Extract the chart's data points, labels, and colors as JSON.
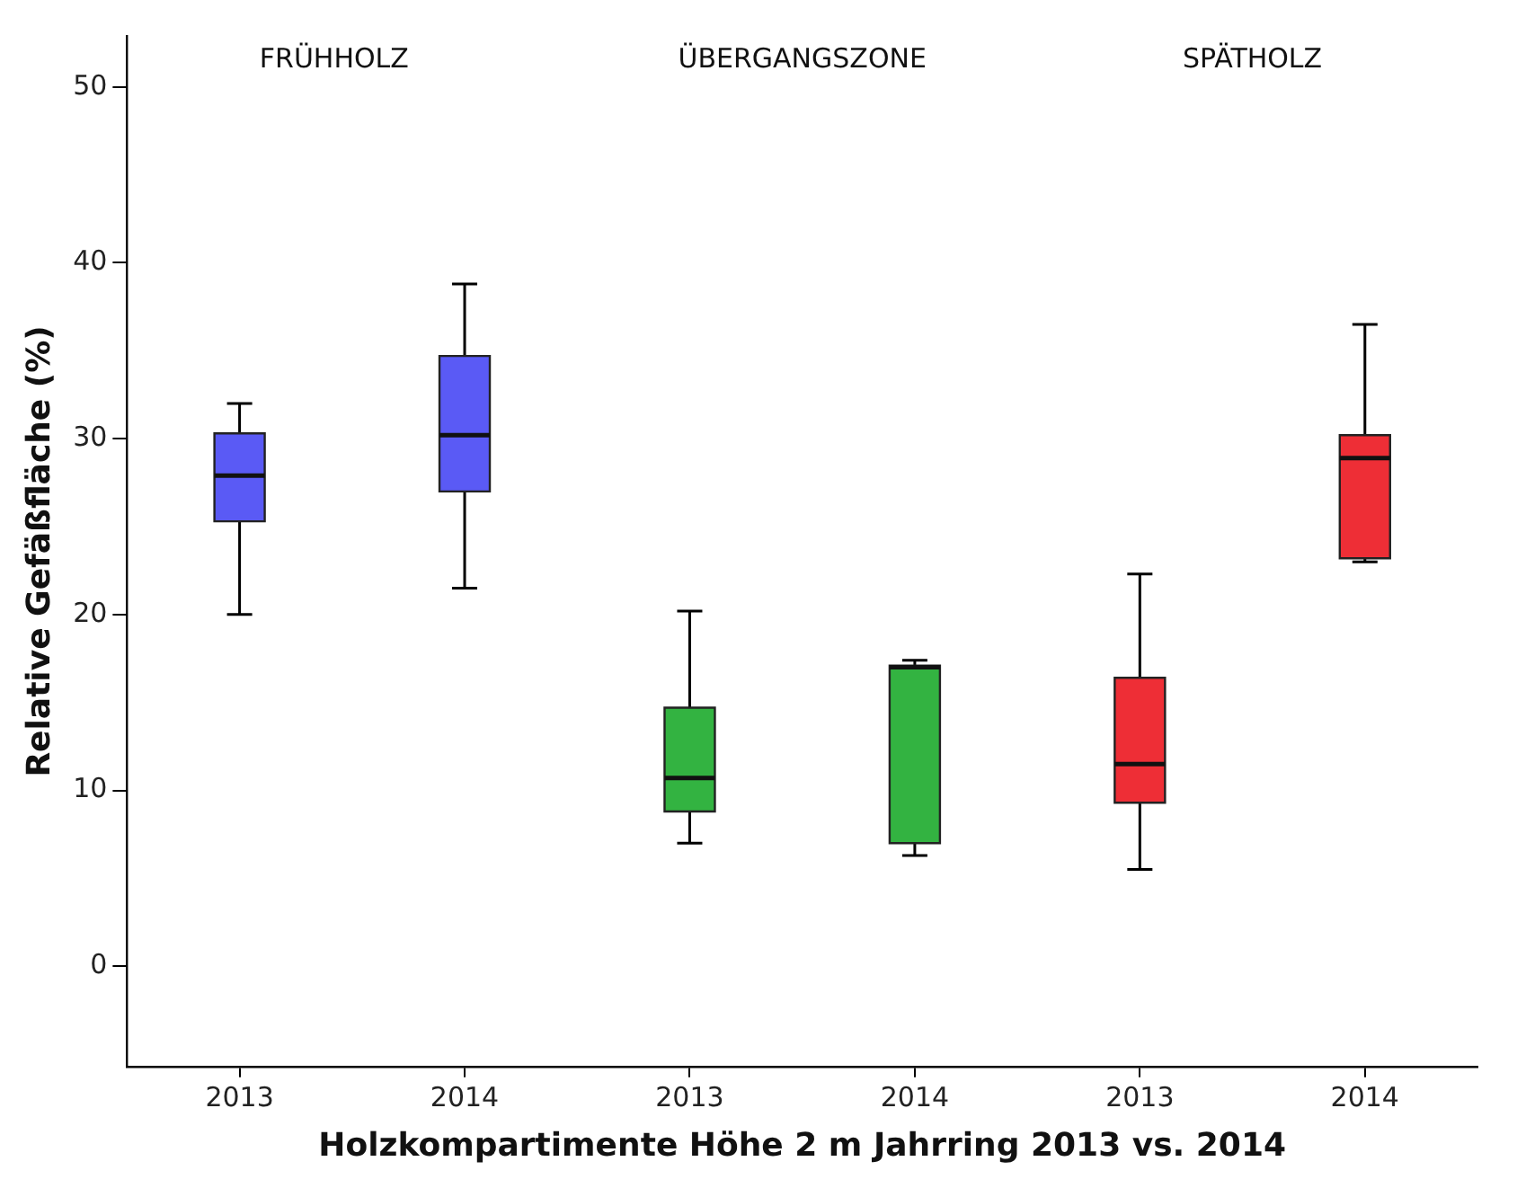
{
  "chart_data": {
    "type": "box",
    "xlabel": "Holzkompartimente Höhe 2 m Jahrring 2013 vs. 2014",
    "ylabel": "Relative Gefäßfläche (%)",
    "categories": [
      "2013",
      "2014",
      "2013",
      "2014",
      "2013",
      "2014"
    ],
    "colors": [
      "#5a5af5",
      "#5a5af5",
      "#33b341",
      "#33b341",
      "#ee2e36",
      "#ee2e36"
    ],
    "boxes": [
      {
        "low": 20.0,
        "q1": 25.3,
        "median": 27.9,
        "q3": 30.3,
        "high": 32.0
      },
      {
        "low": 21.5,
        "q1": 27.0,
        "median": 30.2,
        "q3": 34.7,
        "high": 38.8
      },
      {
        "low": 7.0,
        "q1": 8.8,
        "median": 10.7,
        "q3": 14.7,
        "high": 20.2
      },
      {
        "low": 6.3,
        "q1": 7.0,
        "median": 17.0,
        "q3": 17.1,
        "high": 17.4
      },
      {
        "low": 5.5,
        "q1": 9.3,
        "median": 11.5,
        "q3": 16.4,
        "high": 22.3
      },
      {
        "low": 23.0,
        "q1": 23.2,
        "median": 28.9,
        "q3": 30.2,
        "high": 36.5
      }
    ],
    "annotations": [
      "FRÜHHOLZ",
      "ÜBERGANGSZONE",
      "SPÄTHOLZ"
    ],
    "ylim": [
      -5.7,
      52.9
    ],
    "yticks": [
      0,
      10,
      20,
      30,
      40,
      50
    ],
    "grid": false,
    "legend": false
  }
}
